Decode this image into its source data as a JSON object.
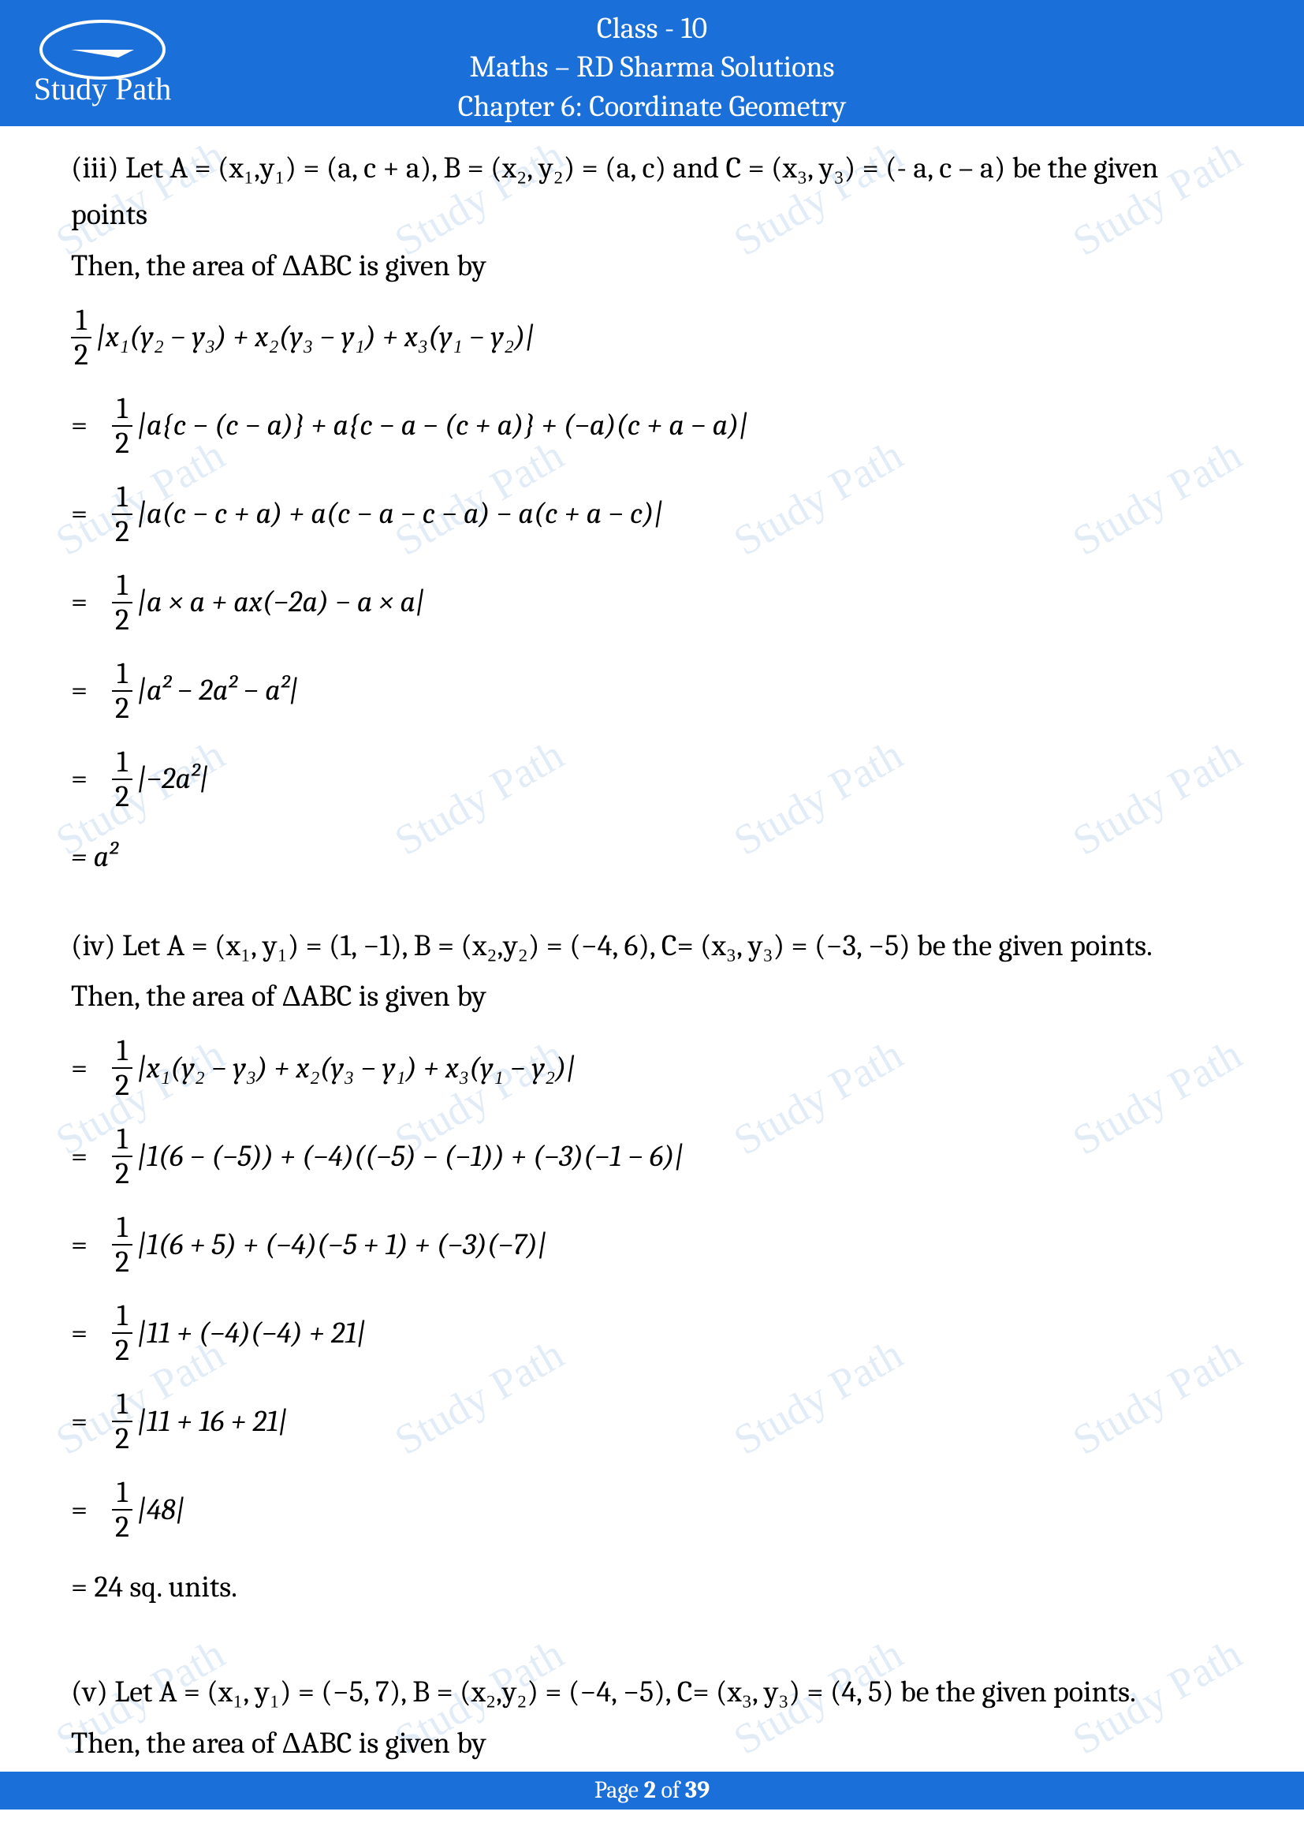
{
  "header": {
    "line1": "Class - 10",
    "line2": "Maths – RD Sharma Solutions",
    "line3": "Chapter 6: Coordinate Geometry",
    "logo_text": "Study Path",
    "bg_color": "#1a6fd9",
    "text_color": "#ffffff"
  },
  "watermark": {
    "text": "Study Path",
    "color": "#d9e6f5"
  },
  "section_iii": {
    "intro": "(iii) Let A = (x₁,y₁) = (a, c + a), B = (x₂, y₂) = (a, c) and C = (x₃, y₃) = (- a, c – a) be the given points",
    "then_line": "Then, the area of ΔABC is given by",
    "formula": "|x₁(y₂ − y₃) + x₂(y₃ − y₁) + x₃(y₁ − y₂)|",
    "steps": [
      "|a{c − (c − a)} +  a{c − a − (c + a)} + (−a)(c + a − a)|",
      "|a(c − c + a) + a(c − a − c − a) − a(c + a − c)|",
      "|a × a + ax(−2a) − a × a|",
      "|a² − 2a² − a²|",
      "|−2a²|"
    ],
    "result": "= a²"
  },
  "section_iv": {
    "intro": "(iv) Let A = (x₁, y₁) = (1, −1), B = (x₂,y₂) = (−4, 6), C= (x₃, y₃) = (−3, −5) be the given points.",
    "then_line": "Then, the area of ΔABC is given by",
    "step0": "|x₁(y₂ − y₃) + x₂(y₃ − y₁) + x₃(y₁ − y₂)|",
    "steps": [
      "|1(6 − (−5)) + (−4)((−5) − (−1)) + (−3)(−1 − 6)|",
      "|1(6 + 5) + (−4)(−5 + 1) + (−3)(−7)|",
      "|11 + (−4)(−4) + 21|",
      "|11 + 16 + 21|",
      "|48|"
    ],
    "result": "= 24 sq. units."
  },
  "section_v": {
    "intro": "(v) Let A = (x₁, y₁) = (−5, 7), B = (x₂,y₂) = (−4, −5), C= (x₃, y₃) = (4, 5) be the given points.",
    "then_line": "Then, the area of ΔABC is given by"
  },
  "footer": {
    "prefix": "Page ",
    "current": "2",
    "middle": " of ",
    "total": "39"
  },
  "frac": {
    "num": "1",
    "den": "2"
  }
}
